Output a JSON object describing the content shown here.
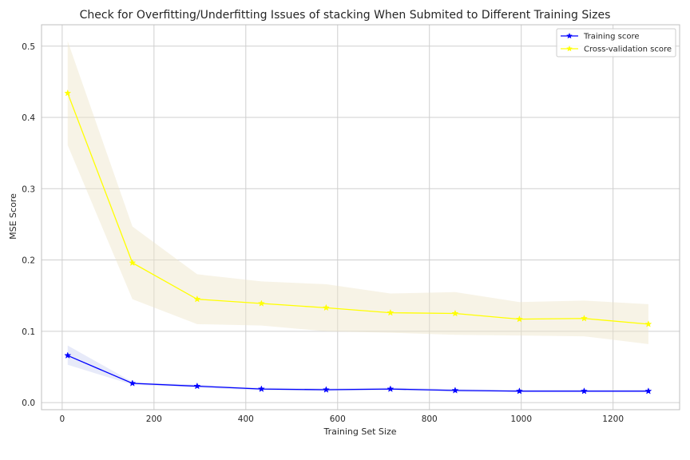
{
  "chart_data": {
    "type": "line",
    "title": "Check for Overfitting/Underfitting Issues of stacking When Submited to Different Training Sizes",
    "xlabel": "Training Set Size",
    "ylabel": "MSE Score",
    "xlim": [
      -45,
      1345
    ],
    "ylim": [
      -0.01,
      0.53
    ],
    "xticks": [
      0,
      200,
      400,
      600,
      800,
      1000,
      1200
    ],
    "yticks": [
      0.0,
      0.1,
      0.2,
      0.3,
      0.4,
      0.5
    ],
    "ytick_labels": [
      "0.0",
      "0.1",
      "0.2",
      "0.3",
      "0.4",
      "0.5"
    ],
    "grid": true,
    "legend_position": "top-right",
    "x": [
      12,
      153,
      294,
      434,
      575,
      715,
      856,
      996,
      1137,
      1277
    ],
    "series": [
      {
        "name": "Training score",
        "color": "#0000ff",
        "band_color": "#c9d0f2",
        "marker": "star",
        "values": [
          0.066,
          0.027,
          0.023,
          0.019,
          0.018,
          0.019,
          0.017,
          0.016,
          0.016,
          0.016
        ],
        "band_lower": [
          0.053,
          0.025,
          0.021,
          0.017,
          0.016,
          0.017,
          0.015,
          0.015,
          0.015,
          0.015
        ],
        "band_upper": [
          0.08,
          0.029,
          0.025,
          0.021,
          0.02,
          0.021,
          0.019,
          0.018,
          0.018,
          0.018
        ]
      },
      {
        "name": "Cross-validation score",
        "color": "#ffff00",
        "band_color": "#ede4c8",
        "marker": "star",
        "values": [
          0.434,
          0.196,
          0.145,
          0.139,
          0.133,
          0.126,
          0.125,
          0.117,
          0.118,
          0.11
        ],
        "band_lower": [
          0.361,
          0.145,
          0.11,
          0.108,
          0.1,
          0.098,
          0.095,
          0.094,
          0.093,
          0.082
        ],
        "band_upper": [
          0.507,
          0.247,
          0.18,
          0.17,
          0.166,
          0.153,
          0.155,
          0.141,
          0.143,
          0.138
        ]
      }
    ]
  }
}
